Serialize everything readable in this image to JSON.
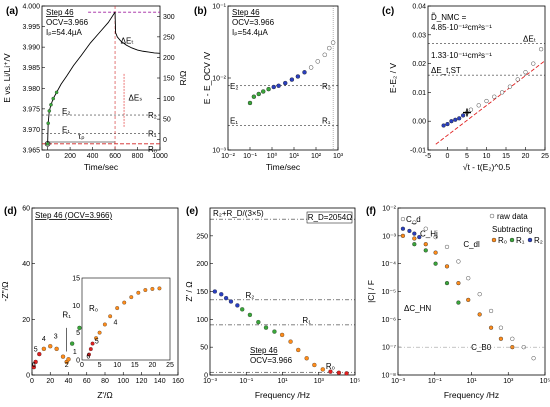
{
  "chart_data": [
    {
      "type": "scatter",
      "panel_label": "(a)",
      "xlabel": "Time/sec",
      "ylabel": "E vs. Li/Li⁺/V",
      "ylabel2": "R/Ω",
      "xlim": [
        -50,
        1000
      ],
      "ylim": [
        3.965,
        4.0
      ],
      "ylim2": [
        -25,
        325
      ],
      "xticks": [
        "0",
        "200",
        "400",
        "600",
        "800",
        "1000"
      ],
      "yticks": [
        "3.965",
        "3.970",
        "3.975",
        "3.980",
        "3.985",
        "3.990",
        "3.995",
        "4.000"
      ],
      "yticks2": [
        "0",
        "50",
        "100",
        "150",
        "200",
        "250",
        "300"
      ],
      "text": {
        "step": "Step 46",
        "ocv": "OCV=3.966",
        "ip": "Iₚ=54.4µA",
        "e2": "E₂",
        "e1": "E₁",
        "r2": "R₂",
        "r1": "R₁",
        "r0": "R₀",
        "delta_et": "ΔEₜ",
        "delta_es": "ΔEₛ",
        "tau": "τₚ"
      },
      "series": [
        {
          "name": "pulse",
          "x": [
            0,
            5,
            15,
            30,
            50,
            80,
            120,
            170,
            230,
            300,
            380,
            460,
            540,
            600
          ],
          "y": [
            3.9665,
            3.9715,
            3.9745,
            3.976,
            3.9775,
            3.979,
            3.981,
            3.983,
            3.9855,
            3.988,
            3.991,
            3.9935,
            3.996,
            3.9985
          ]
        },
        {
          "name": "relaxation",
          "x": [
            600,
            605,
            620,
            650,
            700,
            750,
            800,
            850,
            900,
            950,
            1000
          ],
          "y": [
            3.9985,
            3.9935,
            3.9925,
            3.9915,
            3.9905,
            3.9898,
            3.9893,
            3.989,
            3.9888,
            3.9886,
            3.9885
          ]
        }
      ]
    },
    {
      "type": "scatter",
      "panel_label": "(b)",
      "xlabel": "Time/sec",
      "ylabel": "E - E_OCV /V",
      "xscale": "log",
      "yscale": "log",
      "xlim": [
        0.01,
        1000
      ],
      "ylim": [
        0.001,
        0.1
      ],
      "xticks": [
        "10⁻²",
        "10⁻¹",
        "10⁰",
        "10¹",
        "10²",
        "10³"
      ],
      "yticks": [
        "10⁻³",
        "10⁻²",
        "10⁻¹"
      ],
      "text": {
        "step": "Step 46",
        "ocv": "OCV=3.966",
        "ip": "Iₚ=54.4µA",
        "e2": "E₂",
        "e1": "E₁",
        "r2": "R₂",
        "r1": "R₁"
      },
      "series": [
        {
          "name": "E",
          "x": [
            0.1,
            0.15,
            0.25,
            0.4,
            0.7,
            1.2,
            2,
            4,
            8,
            15,
            30,
            60,
            120,
            250,
            400,
            600
          ],
          "y": [
            0.0045,
            0.0055,
            0.006,
            0.0065,
            0.007,
            0.0075,
            0.0078,
            0.0085,
            0.0095,
            0.0105,
            0.012,
            0.014,
            0.017,
            0.021,
            0.026,
            0.031
          ]
        }
      ]
    },
    {
      "type": "scatter",
      "panel_label": "(c)",
      "xlabel": "√t - t(E₂)^0.5",
      "ylabel": "E-E₂ / V",
      "xlim": [
        -5,
        25
      ],
      "ylim": [
        -0.01,
        0.04
      ],
      "xticks": [
        "-5",
        "0",
        "5",
        "10",
        "15",
        "20",
        "25"
      ],
      "yticks": [
        "-0.01",
        "0.00",
        "0.01",
        "0.02",
        "0.03",
        "0.04"
      ],
      "text": {
        "dnmc_label": "D̃_NMC =",
        "dnmc_value1": "4.85·10⁻¹²cm²s⁻¹",
        "dnmc_value2": "1.33·10⁻¹¹cm²s⁻¹",
        "delta_et": "ΔEₜ",
        "delta_est": "ΔE_t,ST"
      },
      "series": [
        {
          "name": "E-E2",
          "x": [
            -1,
            0,
            1,
            2,
            3,
            4,
            5,
            6,
            8,
            10,
            12,
            14,
            16,
            18,
            20,
            22,
            24
          ],
          "y": [
            -0.0015,
            -0.001,
            0.0,
            0.0005,
            0.001,
            0.002,
            0.003,
            0.004,
            0.0055,
            0.007,
            0.0085,
            0.01,
            0.012,
            0.0145,
            0.017,
            0.02,
            0.025
          ]
        }
      ]
    },
    {
      "type": "scatter",
      "panel_label": "(d)",
      "xlabel": "Z'/Ω",
      "ylabel": "-Z''/Ω",
      "xlim": [
        0,
        160
      ],
      "ylim": [
        0,
        60
      ],
      "xticks": [
        "0",
        "20",
        "40",
        "60",
        "80",
        "100",
        "120",
        "140",
        "160"
      ],
      "yticks": [
        "0",
        "20",
        "40",
        "60"
      ],
      "text": {
        "title": "Step 46 (OCV=3.966)",
        "r1": "R₁",
        "r2": "R₂",
        "r0": "R₀"
      },
      "point_labels": [
        "6",
        "5",
        "4",
        "3",
        "2",
        "1",
        "0",
        "-1",
        "-2"
      ],
      "series": [
        {
          "name": "impedance",
          "x": [
            2,
            4,
            8,
            13,
            20,
            27,
            34,
            38,
            40,
            44,
            52,
            62,
            72,
            82,
            92,
            102,
            110,
            118,
            124,
            130,
            134
          ],
          "y": [
            3,
            5,
            8,
            10,
            11,
            10,
            7,
            5,
            6,
            12,
            18,
            22,
            23,
            22,
            19,
            14,
            10,
            14,
            20,
            24,
            22
          ]
        }
      ],
      "inset": {
        "xticks": [
          "0",
          "5",
          "10",
          "15",
          "20",
          "25"
        ],
        "yticks": [
          "0",
          "5",
          "10",
          "15"
        ],
        "point_labels": [
          "6",
          "5",
          "4"
        ]
      }
    },
    {
      "type": "line",
      "panel_label": "(e)",
      "xlabel": "Frequency /Hz",
      "ylabel": "Z' / Ω",
      "xscale": "log",
      "xlim": [
        0.001,
        1000000
      ],
      "ylim": [
        0,
        300
      ],
      "xticks": [
        "10⁻³",
        "10⁻¹",
        "10¹",
        "10³",
        "10⁵"
      ],
      "yticks": [
        "0",
        "50",
        "100",
        "150",
        "200",
        "250"
      ],
      "text": {
        "r2_plus": "R₂+R_D/(3×5)",
        "rd": "R_D=2054Ω",
        "r2": "R₂",
        "r1": "R₁",
        "r0": "R₀",
        "step": "Step 46",
        "ocv": "OCV=3.966"
      },
      "series": [
        {
          "name": "Z'",
          "x": [
            0.002,
            0.005,
            0.01,
            0.02,
            0.05,
            0.1,
            0.3,
            1,
            3,
            10,
            30,
            100,
            300,
            1000,
            3000,
            10000,
            30000,
            100000,
            300000
          ],
          "y": [
            150,
            145,
            138,
            132,
            125,
            118,
            108,
            95,
            85,
            78,
            72,
            60,
            45,
            30,
            18,
            10,
            6,
            4,
            3
          ]
        }
      ]
    },
    {
      "type": "line",
      "panel_label": "(f)",
      "xlabel": "Frequency /Hz",
      "ylabel": "|C| / F",
      "xscale": "log",
      "yscale": "log",
      "xlim": [
        0.001,
        1000000
      ],
      "ylim": [
        1e-08,
        0.01
      ],
      "xticks": [
        "10⁻³",
        "10⁻¹",
        "10¹",
        "10³",
        "10⁵"
      ],
      "yticks": [
        "10⁻⁸",
        "10⁻⁷",
        "10⁻⁶",
        "10⁻⁵",
        "10⁻⁴",
        "10⁻³",
        "10⁻²"
      ],
      "legend": {
        "raw": "raw data",
        "subtracting": "Subtracting",
        "r0": "R₀",
        "r1": "R₁",
        "r2": "R₂"
      },
      "text": {
        "cd": "C_d",
        "chj": "C_Hj",
        "cdl": "C_dl",
        "dchn": "ΔC_HN",
        "cb0": "C_B0"
      },
      "series": [
        {
          "name": "raw data",
          "x": [
            0.002,
            0.01,
            0.05,
            0.2,
            1,
            5,
            20,
            100,
            500,
            2000,
            10000,
            50000,
            200000
          ],
          "y": [
            0.004,
            0.003,
            0.0018,
            0.0009,
            0.0004,
            0.00012,
            3e-05,
            8e-06,
            2e-06,
            5e-07,
            2e-07,
            1e-07,
            4e-08
          ]
        },
        {
          "name": "R0",
          "x": [
            0.002,
            0.01,
            0.05,
            0.2,
            1,
            5,
            20,
            100,
            500,
            2000,
            10000
          ],
          "y": [
            0.001,
            0.0008,
            0.0005,
            0.00025,
            8e-05,
            2e-05,
            5e-06,
            1.5e-06,
            5e-07,
            2e-07,
            1e-07
          ]
        },
        {
          "name": "R1",
          "x": [
            0.01,
            0.05,
            0.2,
            1,
            5
          ],
          "y": [
            0.0005,
            0.0003,
            0.0001,
            2e-05,
            4e-06
          ]
        },
        {
          "name": "R2",
          "x": [
            0.002,
            0.005,
            0.01,
            0.02
          ],
          "y": [
            0.0018,
            0.0015,
            0.0012,
            0.0009
          ]
        }
      ]
    }
  ]
}
